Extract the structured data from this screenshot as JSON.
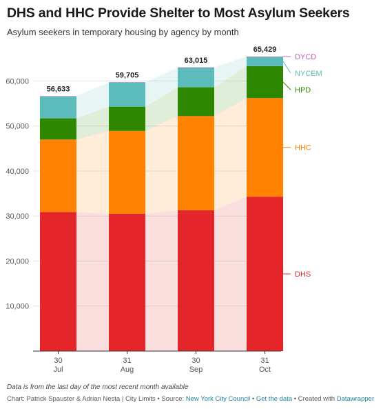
{
  "header": {
    "title": "DHS and HHC Provide Shelter to Most Asylum Seekers",
    "subtitle": "Asylum seekers in temporary housing by agency by month"
  },
  "footer": {
    "note": "Data is from the last day of the most recent month available",
    "credit_prefix": "Chart: Patrick Spauster & Adrian Nesta | City Limits • Source: ",
    "source_link": "New York City Council",
    "sep1": " • ",
    "get_data": "Get the data",
    "sep2": " • Created with ",
    "created_with": "Datawrapper"
  },
  "chart_data": {
    "type": "bar",
    "stacked": true,
    "categories": [
      {
        "day": "30",
        "month": "Jul"
      },
      {
        "day": "31",
        "month": "Aug"
      },
      {
        "day": "30",
        "month": "Sep"
      },
      {
        "day": "31",
        "month": "Oct"
      }
    ],
    "totals": [
      "56,633",
      "59,705",
      "63,015",
      "65,429"
    ],
    "series": [
      {
        "name": "DHS",
        "color": "#e4262b",
        "values": [
          30900,
          30500,
          31300,
          34300
        ]
      },
      {
        "name": "HHC",
        "color": "#ff8201",
        "values": [
          16100,
          18400,
          20900,
          21900
        ]
      },
      {
        "name": "HPD",
        "color": "#2f8700",
        "values": [
          4700,
          5400,
          6400,
          7100
        ]
      },
      {
        "name": "NYCEM",
        "color": "#5bbcbb",
        "values": [
          4900,
          5400,
          4400,
          2100
        ]
      },
      {
        "name": "DYCD",
        "color": "#bd5fbf",
        "values": [
          33,
          5,
          15,
          29
        ]
      }
    ],
    "ylim": [
      0,
      65429
    ],
    "yticks": [
      10000,
      20000,
      30000,
      40000,
      50000,
      60000
    ],
    "ytick_labels": [
      "10,000",
      "20,000",
      "30,000",
      "40,000",
      "50,000",
      "60,000"
    ],
    "grid": true,
    "legend": "right, labels aligned to last bar"
  }
}
